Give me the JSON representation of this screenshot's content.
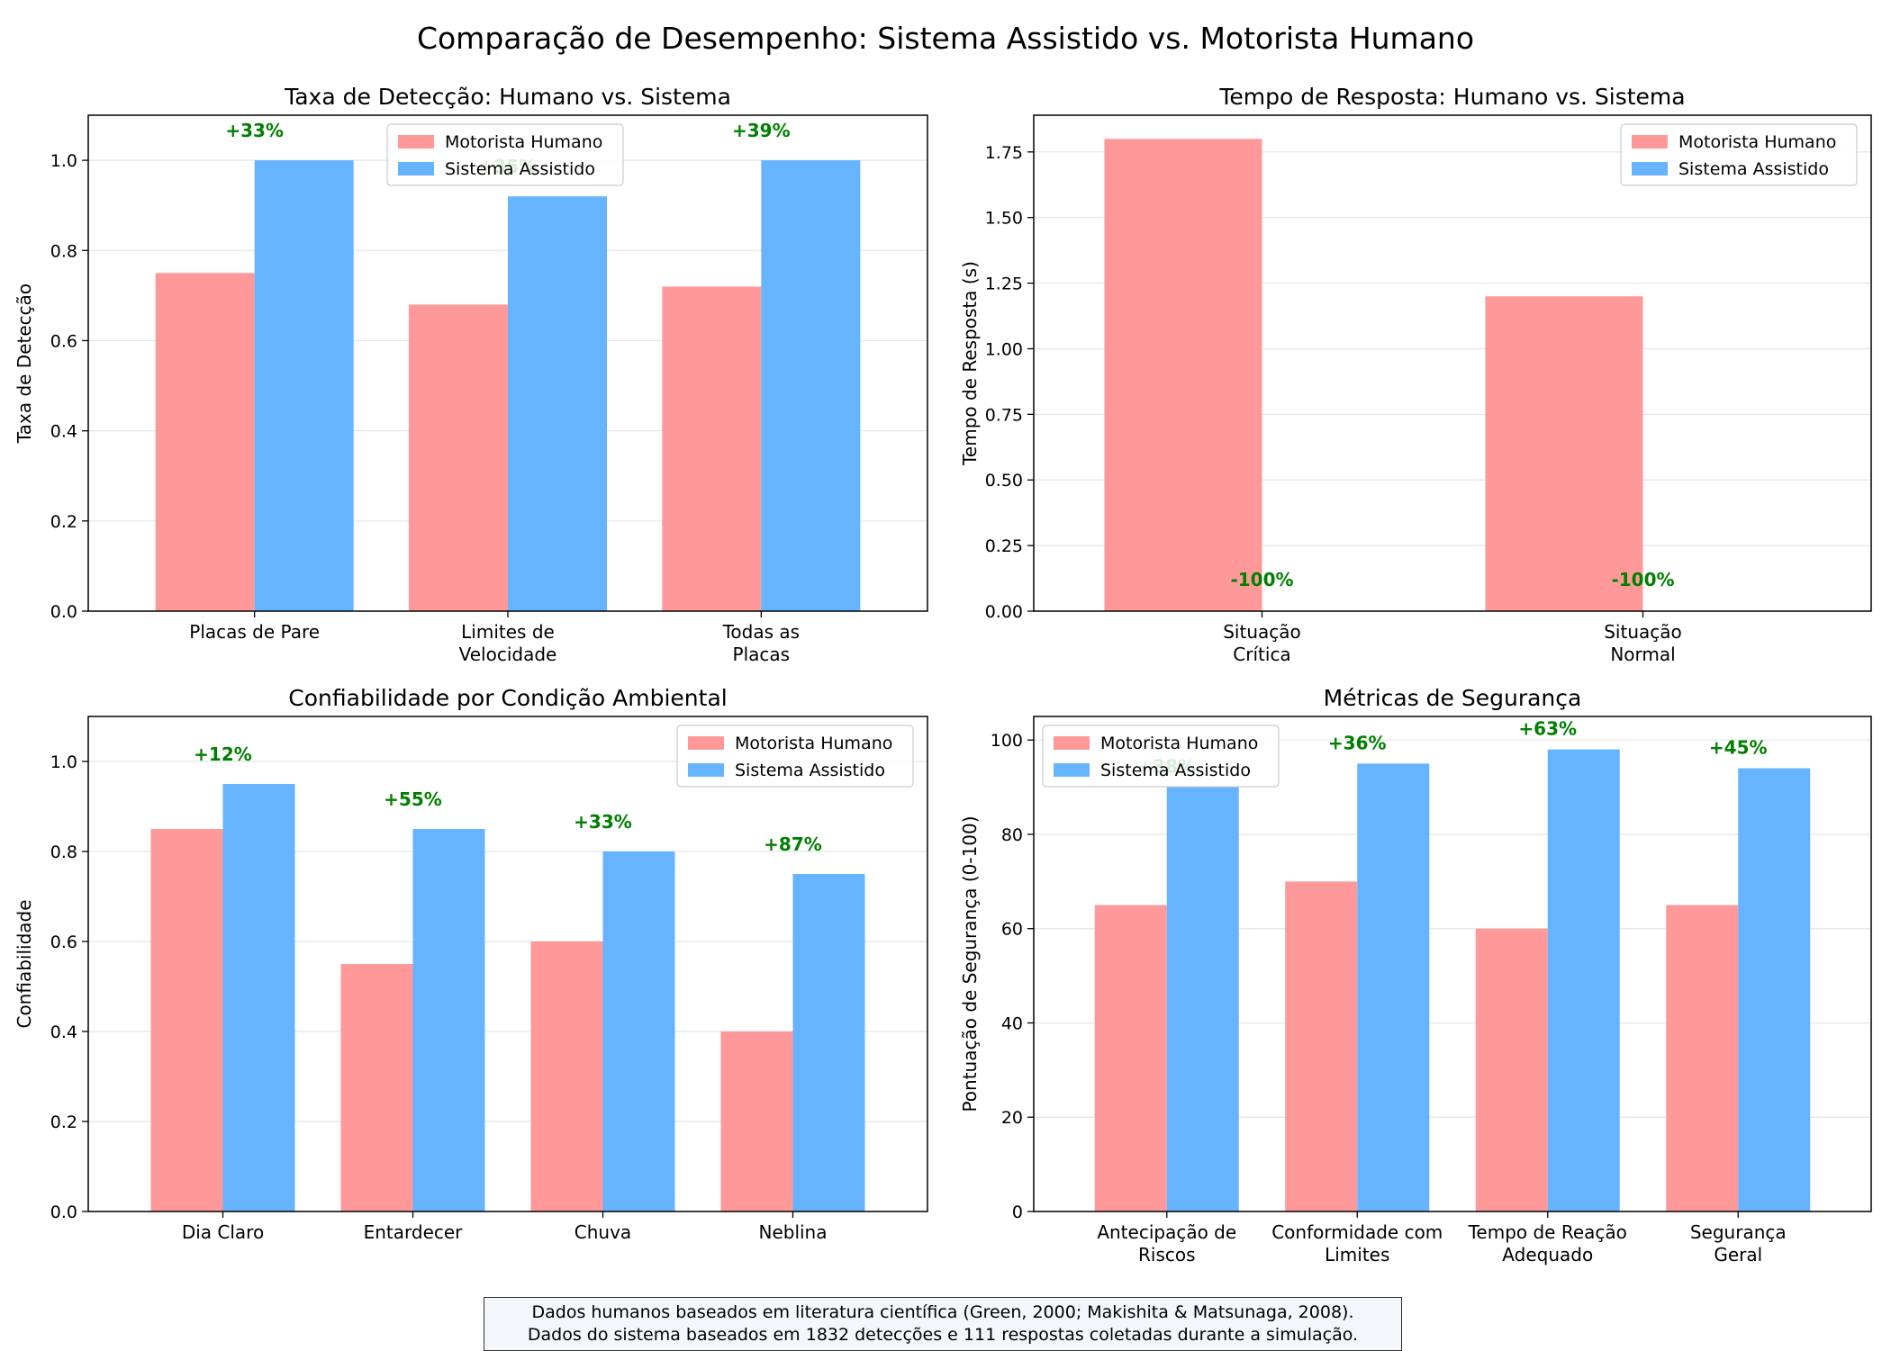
{
  "figure": {
    "title": "Comparação de Desempenho: Sistema Assistido vs. Motorista Humano",
    "footnote": [
      "Dados humanos baseados em literatura científica (Green, 2000; Makishita & Matsunaga, 2008).",
      "Dados do sistema baseados em 1832 detecções e 111 respostas coletadas durante a simulação."
    ]
  },
  "colors": {
    "human": "#ff9999",
    "system": "#66b3ff",
    "annotation": "#008000",
    "grid": "#e5e5e5"
  },
  "chart_data": [
    {
      "type": "bar",
      "title": "Taxa de Detecção: Humano vs. Sistema",
      "xlabel": "",
      "ylabel": "Taxa de Detecção",
      "categories": [
        [
          "Placas de Pare"
        ],
        [
          "Limites de",
          "Velocidade"
        ],
        [
          "Todas as",
          "Placas"
        ]
      ],
      "series": [
        {
          "name": "Motorista Humano",
          "values": [
            0.75,
            0.68,
            0.72
          ]
        },
        {
          "name": "Sistema Assistido",
          "values": [
            1.0,
            0.92,
            1.0
          ]
        }
      ],
      "annotations": [
        "+33%",
        "+35%",
        "+39%"
      ],
      "ylim": [
        0,
        1.1
      ],
      "yticks": [
        "0.0",
        "0.2",
        "0.4",
        "0.6",
        "0.8",
        "1.0"
      ],
      "grid": "y",
      "legend": "top-center"
    },
    {
      "type": "bar",
      "title": "Tempo de Resposta: Humano vs. Sistema",
      "xlabel": "",
      "ylabel": "Tempo de Resposta (s)",
      "categories": [
        [
          "Situação",
          "Crítica"
        ],
        [
          "Situação",
          "Normal"
        ]
      ],
      "series": [
        {
          "name": "Motorista Humano",
          "values": [
            1.8,
            1.2
          ]
        },
        {
          "name": "Sistema Assistido",
          "values": [
            0.0,
            0.0
          ]
        }
      ],
      "annotations": [
        "-100%",
        "-100%"
      ],
      "ylim": [
        0,
        1.89
      ],
      "yticks": [
        "0.00",
        "0.25",
        "0.50",
        "0.75",
        "1.00",
        "1.25",
        "1.50",
        "1.75"
      ],
      "grid": "y",
      "legend": "top-right"
    },
    {
      "type": "bar",
      "title": "Confiabilidade por Condição Ambiental",
      "xlabel": "",
      "ylabel": "Confiabilidade",
      "categories": [
        [
          "Dia Claro"
        ],
        [
          "Entardecer"
        ],
        [
          "Chuva"
        ],
        [
          "Neblina"
        ]
      ],
      "series": [
        {
          "name": "Motorista Humano",
          "values": [
            0.85,
            0.55,
            0.6,
            0.4
          ]
        },
        {
          "name": "Sistema Assistido",
          "values": [
            0.95,
            0.85,
            0.8,
            0.75
          ]
        }
      ],
      "annotations": [
        "+12%",
        "+55%",
        "+33%",
        "+87%"
      ],
      "ylim": [
        0,
        1.1
      ],
      "yticks": [
        "0.0",
        "0.2",
        "0.4",
        "0.6",
        "0.8",
        "1.0"
      ],
      "grid": "y",
      "legend": "top-right"
    },
    {
      "type": "bar",
      "title": "Métricas de Segurança",
      "xlabel": "",
      "ylabel": "Pontuação de Segurança (0-100)",
      "categories": [
        [
          "Antecipação de",
          "Riscos"
        ],
        [
          "Conformidade com",
          "Limites"
        ],
        [
          "Tempo de Reação",
          "Adequado"
        ],
        [
          "Segurança",
          "Geral"
        ]
      ],
      "series": [
        {
          "name": "Motorista Humano",
          "values": [
            65,
            70,
            60,
            65
          ]
        },
        {
          "name": "Sistema Assistido",
          "values": [
            90,
            95,
            98,
            94
          ]
        }
      ],
      "annotations": [
        "+38%",
        "+36%",
        "+63%",
        "+45%"
      ],
      "ylim": [
        0,
        105
      ],
      "yticks": [
        "0",
        "20",
        "40",
        "60",
        "80",
        "100"
      ],
      "grid": "y",
      "legend": "top-left"
    }
  ]
}
